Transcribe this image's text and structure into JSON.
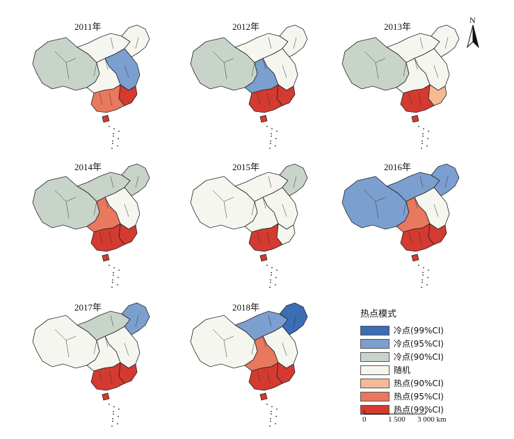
{
  "panels": [
    {
      "year": "2011年",
      "north": "random",
      "northeast": "random",
      "west": "cold90",
      "central": "random",
      "south": "hot95",
      "southeast": "hot99",
      "east": "cold95",
      "hainan": "hot99"
    },
    {
      "year": "2012年",
      "north": "random",
      "northeast": "random",
      "west": "cold90",
      "central": "cold95",
      "south": "hot99",
      "southeast": "hot99",
      "east": "random",
      "hainan": "hot99"
    },
    {
      "year": "2013年",
      "north": "random",
      "northeast": "random",
      "west": "cold90",
      "central": "random",
      "south": "hot99",
      "southeast": "hot90",
      "east": "random",
      "hainan": "hot99"
    },
    {
      "year": "2014年",
      "north": "cold90",
      "northeast": "cold90",
      "west": "cold90",
      "central": "hot95",
      "south": "hot99",
      "southeast": "hot99",
      "east": "random",
      "hainan": "hot99"
    },
    {
      "year": "2015年",
      "north": "random",
      "northeast": "cold90",
      "west": "random",
      "central": "random",
      "south": "hot99",
      "southeast": "random",
      "east": "random",
      "hainan": "hot99"
    },
    {
      "year": "2016年",
      "north": "cold95",
      "northeast": "cold95",
      "west": "cold95",
      "central": "hot95",
      "south": "hot99",
      "southeast": "hot99",
      "east": "random",
      "hainan": "hot99"
    },
    {
      "year": "2017年",
      "north": "cold90",
      "northeast": "cold95",
      "west": "random",
      "central": "random",
      "south": "hot99",
      "southeast": "hot99",
      "east": "random",
      "hainan": "hot99"
    },
    {
      "year": "2018年",
      "north": "cold95",
      "northeast": "cold99",
      "west": "random",
      "central": "hot95",
      "south": "hot99",
      "southeast": "hot99",
      "east": "random",
      "hainan": "hot99"
    }
  ],
  "north_arrow": "N",
  "legend": {
    "title": "热点模式",
    "items": [
      {
        "key": "cold99",
        "label": "冷点(99%CI)",
        "color": "#3a6eb5"
      },
      {
        "key": "cold95",
        "label": "冷点(95%CI)",
        "color": "#7b9fcf"
      },
      {
        "key": "cold90",
        "label": "冷点(90%CI)",
        "color": "#c8d4c9"
      },
      {
        "key": "random",
        "label": "随机",
        "color": "#f4f6ef"
      },
      {
        "key": "hot90",
        "label": "热点(90%CI)",
        "color": "#f4b995"
      },
      {
        "key": "hot95",
        "label": "热点(95%CI)",
        "color": "#e8785e"
      },
      {
        "key": "hot99",
        "label": "热点(99%CI)",
        "color": "#d43a30"
      }
    ]
  },
  "scale_bar": {
    "ticks": [
      "0",
      "1 500",
      "3 000 km"
    ]
  }
}
